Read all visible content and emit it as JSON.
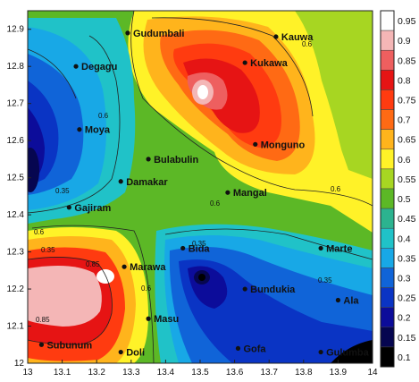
{
  "map": {
    "x_ticks": [
      "13",
      "13.1",
      "13.2",
      "13.3",
      "13.4",
      "13.5",
      "13.6",
      "13.7",
      "13.8",
      "13.9",
      "14"
    ],
    "y_ticks": [
      "12",
      "12.1",
      "12.2",
      "12.3",
      "12.4",
      "12.5",
      "12.6",
      "12.7",
      "12.8",
      "12.9"
    ],
    "places": [
      {
        "name": "Gudumbali",
        "lon": 13.29,
        "lat": 12.89
      },
      {
        "name": "Kauwa",
        "lon": 13.72,
        "lat": 12.88
      },
      {
        "name": "Degagu",
        "lon": 13.14,
        "lat": 12.8
      },
      {
        "name": "Kukawa",
        "lon": 13.63,
        "lat": 12.81
      },
      {
        "name": "Moya",
        "lon": 13.15,
        "lat": 12.63
      },
      {
        "name": "Monguno",
        "lon": 13.66,
        "lat": 12.59
      },
      {
        "name": "Bulabulin",
        "lon": 13.35,
        "lat": 12.55
      },
      {
        "name": "Damakar",
        "lon": 13.27,
        "lat": 12.49
      },
      {
        "name": "Mangal",
        "lon": 13.58,
        "lat": 12.46
      },
      {
        "name": "Gajiram",
        "lon": 13.12,
        "lat": 12.42
      },
      {
        "name": "Marte",
        "lon": 13.85,
        "lat": 12.31
      },
      {
        "name": "Bida",
        "lon": 13.45,
        "lat": 12.31
      },
      {
        "name": "Marawa",
        "lon": 13.28,
        "lat": 12.26
      },
      {
        "name": "Bundukia",
        "lon": 13.63,
        "lat": 12.2
      },
      {
        "name": "Ala",
        "lon": 13.9,
        "lat": 12.17
      },
      {
        "name": "Masu",
        "lon": 13.35,
        "lat": 12.12
      },
      {
        "name": "Subunum",
        "lon": 13.04,
        "lat": 12.05
      },
      {
        "name": "Doli",
        "lon": 13.27,
        "lat": 12.03
      },
      {
        "name": "Gofa",
        "lon": 13.61,
        "lat": 12.04
      },
      {
        "name": "Gulumba",
        "lon": 13.85,
        "lat": 12.03
      }
    ],
    "contour_labels": [
      "0.6",
      "0.6",
      "0.35",
      "0.6",
      "0.6",
      "0.6",
      "0.35",
      "0.85",
      "0.85",
      "0.6",
      "0.35",
      "0.35"
    ]
  },
  "colorbar": {
    "levels": [
      "0.95",
      "0.9",
      "0.85",
      "0.8",
      "0.75",
      "0.7",
      "0.65",
      "0.6",
      "0.55",
      "0.5",
      "0.45",
      "0.4",
      "0.35",
      "0.3",
      "0.25",
      "0.2",
      "0.15",
      "0.1"
    ],
    "colors": [
      "#ffffff",
      "#f4b6b6",
      "#ee5f5f",
      "#e61414",
      "#ff3b10",
      "#ff6a14",
      "#ffb41c",
      "#fff228",
      "#a7d622",
      "#5cb826",
      "#2cb38f",
      "#20c2c8",
      "#18a8e6",
      "#1064d8",
      "#0a34c4",
      "#0c0c9a",
      "#060650",
      "#000000"
    ]
  }
}
